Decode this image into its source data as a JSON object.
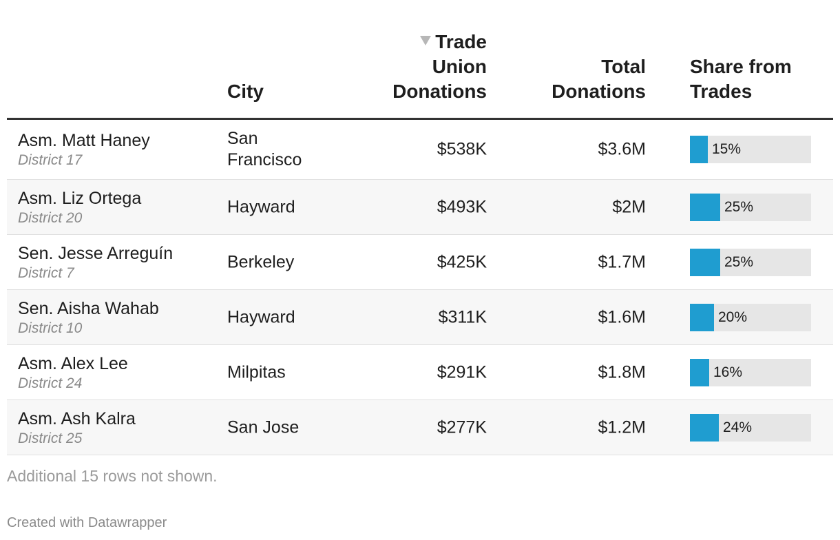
{
  "header": {
    "col_city": "City",
    "col_union_l1": "Trade",
    "col_union_l2": "Union",
    "col_union_l3": "Donations",
    "col_total_l1": "Total",
    "col_total_l2": "Donations",
    "col_share_l1": "Share from",
    "col_share_l2": "Trades",
    "sort_icon": "sort-descending-icon"
  },
  "colors": {
    "bar": "#1f9dd0",
    "bar_bg": "#e6e6e6",
    "rule": "#333333"
  },
  "chart_data": {
    "type": "table",
    "columns": [
      "",
      "City",
      "Trade Union Donations",
      "Total Donations",
      "Share from Trades"
    ],
    "sorted_by": "Trade Union Donations",
    "sort_order": "descending",
    "rows": [
      {
        "name": "Asm. Matt Haney",
        "district": "District 17",
        "city_l1": "San",
        "city_l2": "Francisco",
        "union": "$538K",
        "total": "$3.6M",
        "share_label": "15%",
        "share": 15
      },
      {
        "name": "Asm. Liz Ortega",
        "district": "District 20",
        "city_l1": "Hayward",
        "city_l2": "",
        "union": "$493K",
        "total": "$2M",
        "share_label": "25%",
        "share": 25
      },
      {
        "name": "Sen. Jesse Arreguín",
        "district": "District 7",
        "city_l1": "Berkeley",
        "city_l2": "",
        "union": "$425K",
        "total": "$1.7M",
        "share_label": "25%",
        "share": 25
      },
      {
        "name": "Sen. Aisha Wahab",
        "district": "District 10",
        "city_l1": "Hayward",
        "city_l2": "",
        "union": "$311K",
        "total": "$1.6M",
        "share_label": "20%",
        "share": 20
      },
      {
        "name": "Asm. Alex Lee",
        "district": "District 24",
        "city_l1": "Milpitas",
        "city_l2": "",
        "union": "$291K",
        "total": "$1.8M",
        "share_label": "16%",
        "share": 16
      },
      {
        "name": "Asm. Ash Kalra",
        "district": "District 25",
        "city_l1": "San Jose",
        "city_l2": "",
        "union": "$277K",
        "total": "$1.2M",
        "share_label": "24%",
        "share": 24
      }
    ],
    "share_max": 100
  },
  "footer": {
    "notes": "Additional 15 rows not shown.",
    "credit": "Created with Datawrapper"
  }
}
